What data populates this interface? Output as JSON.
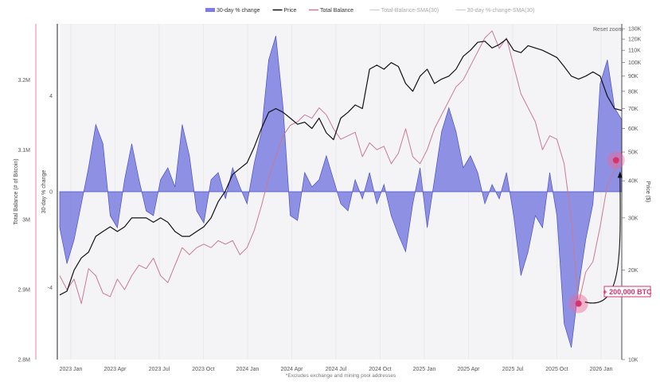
{
  "chart_data": {
    "type": "line",
    "legend": {
      "position": "top",
      "items": [
        {
          "label": "30-day % change",
          "color": "#7b7ee0",
          "style": "area"
        },
        {
          "label": "Price",
          "color": "#111111",
          "style": "line"
        },
        {
          "label": "Total Balance",
          "color": "#c97b8e",
          "style": "line"
        },
        {
          "label": "Total-Balance-SMA(30)",
          "color": "#bbbbbb",
          "style": "line-faded"
        },
        {
          "label": "30-day %-change-SMA(30)",
          "color": "#bbbbbb",
          "style": "line-faded"
        }
      ]
    },
    "reset_zoom_label": "Reset zoom",
    "footnote": "*Excludes exchange and mining pool addresses",
    "annotation": "+ 200,000 BTC",
    "x_ticks": [
      "2023 Jan",
      "2023 Apr",
      "2023 Jul",
      "2023 Oct",
      "2024 Jan",
      "2024 Apr",
      "2024 Jul",
      "2024 Oct",
      "2025 Jan",
      "2025 Apr",
      "2025 Jul",
      "2025 Oct",
      "2026 Jan"
    ],
    "x_range": [
      0,
      39
    ],
    "axes": {
      "left_balance": {
        "title": "Total Balance (# of Bitcoin)",
        "ticks": [
          "2.8M",
          "2.9M",
          "3M",
          "3.1M",
          "3.2M"
        ],
        "tick_values": [
          2.8,
          2.9,
          3.0,
          3.1,
          3.2
        ],
        "range": [
          2.8,
          3.28
        ]
      },
      "left_change": {
        "title": "30-day % change",
        "ticks": [
          "-4",
          "0",
          "4"
        ],
        "tick_values": [
          -4,
          0,
          4
        ],
        "range": [
          -7,
          7
        ]
      },
      "right_price": {
        "title": "Price ($)",
        "scale": "log",
        "ticks": [
          "10K",
          "20K",
          "30K",
          "40K",
          "50K",
          "60K",
          "70K",
          "80K",
          "90K",
          "100K",
          "110K",
          "120K",
          "130K"
        ],
        "tick_values": [
          10,
          20,
          30,
          40,
          50,
          60,
          70,
          80,
          90,
          100,
          110,
          120,
          130
        ],
        "range": [
          10,
          135
        ]
      }
    },
    "series": [
      {
        "name": "30-day % change",
        "x": [
          0,
          0.5,
          1,
          1.5,
          2,
          2.5,
          3,
          3.5,
          4,
          4.5,
          5,
          5.5,
          6,
          6.5,
          7,
          7.5,
          8,
          8.5,
          9,
          9.5,
          10,
          10.5,
          11,
          11.5,
          12,
          12.5,
          13,
          13.5,
          14,
          14.5,
          15,
          15.5,
          16,
          16.5,
          17,
          17.5,
          18,
          18.5,
          19,
          19.5,
          20,
          20.5,
          21,
          21.5,
          22,
          22.5,
          23,
          23.5,
          24,
          24.5,
          25,
          25.5,
          26,
          26.5,
          27,
          27.5,
          28,
          28.5,
          29,
          29.5,
          30,
          30.5,
          31,
          31.5,
          32,
          32.5,
          33,
          33.5,
          34,
          34.5,
          35,
          35.5,
          36,
          36.5,
          37,
          37.5,
          38,
          38.5,
          39
        ],
        "values": [
          -1.5,
          -3,
          -2,
          -0.5,
          1,
          2.8,
          2,
          -1,
          -1.5,
          0.5,
          2,
          0.5,
          -0.8,
          -1,
          0.5,
          1,
          0.2,
          2.8,
          1.5,
          -0.8,
          -1.3,
          0.5,
          0.8,
          -0.3,
          1,
          0.2,
          -0.5,
          1.2,
          2.5,
          5.5,
          6.5,
          3.5,
          -1,
          -1.2,
          0.8,
          0.2,
          0.5,
          1.5,
          0.5,
          -0.5,
          -0.8,
          0.5,
          -0.3,
          0.8,
          -0.5,
          0.3,
          -1,
          -1.8,
          -2.5,
          -0.5,
          1,
          -1.5,
          0.5,
          2.5,
          3.5,
          2.5,
          1,
          1.5,
          0.8,
          -0.5,
          0.3,
          -0.3,
          0.8,
          -1,
          -3.5,
          -2.5,
          -1,
          -1.5,
          0.8,
          -1,
          -5.5,
          -6.5,
          -4,
          -2,
          -0.5,
          4.5,
          5.5,
          3.5,
          3
        ]
      },
      {
        "name": "Price",
        "x": [
          0,
          0.5,
          1,
          1.5,
          2,
          2.5,
          3,
          3.5,
          4,
          4.5,
          5,
          5.5,
          6,
          6.5,
          7,
          7.5,
          8,
          8.5,
          9,
          9.5,
          10,
          10.5,
          11,
          11.5,
          12,
          12.5,
          13,
          13.5,
          14,
          14.5,
          15,
          15.5,
          16,
          16.5,
          17,
          17.5,
          18,
          18.5,
          19,
          19.5,
          20,
          20.5,
          21,
          21.5,
          22,
          22.5,
          23,
          23.5,
          24,
          24.5,
          25,
          25.5,
          26,
          26.5,
          27,
          27.5,
          28,
          28.5,
          29,
          29.5,
          30,
          30.5,
          31,
          31.5,
          32,
          32.5,
          33,
          33.5,
          34,
          34.5,
          35,
          35.5,
          36,
          36.5,
          37,
          37.5,
          38,
          38.5,
          39
        ],
        "values": [
          16.5,
          17,
          20,
          22,
          23,
          26,
          27,
          28,
          27,
          28,
          30,
          30,
          30,
          29,
          30,
          29,
          27,
          26,
          26,
          27,
          28,
          30,
          34,
          37,
          42,
          44,
          46,
          52,
          60,
          68,
          70,
          68,
          65,
          62,
          63,
          60,
          65,
          58,
          55,
          65,
          68,
          72,
          70,
          95,
          98,
          95,
          100,
          97,
          85,
          80,
          90,
          95,
          85,
          88,
          90,
          95,
          105,
          110,
          117,
          118,
          112,
          115,
          120,
          110,
          108,
          114,
          112,
          110,
          107,
          104,
          97,
          90,
          88,
          90,
          93,
          90,
          77,
          70,
          69
        ]
      },
      {
        "name": "Total Balance",
        "x": [
          0,
          0.5,
          1,
          1.5,
          2,
          2.5,
          3,
          3.5,
          4,
          4.5,
          5,
          5.5,
          6,
          6.5,
          7,
          7.5,
          8,
          8.5,
          9,
          9.5,
          10,
          10.5,
          11,
          11.5,
          12,
          12.5,
          13,
          13.5,
          14,
          14.5,
          15,
          15.5,
          16,
          16.5,
          17,
          17.5,
          18,
          18.5,
          19,
          19.5,
          20,
          20.5,
          21,
          21.5,
          22,
          22.5,
          23,
          23.5,
          24,
          24.5,
          25,
          25.5,
          26,
          26.5,
          27,
          27.5,
          28,
          28.5,
          29,
          29.5,
          30,
          30.5,
          31,
          31.5,
          32,
          32.5,
          33,
          33.5,
          34,
          34.5,
          35,
          35.5,
          36,
          36.5,
          37,
          37.5,
          38,
          38.5,
          39
        ],
        "values": [
          2.92,
          2.9,
          2.915,
          2.88,
          2.93,
          2.92,
          2.895,
          2.89,
          2.915,
          2.9,
          2.92,
          2.935,
          2.93,
          2.945,
          2.92,
          2.91,
          2.935,
          2.96,
          2.95,
          2.96,
          2.965,
          2.96,
          2.97,
          2.965,
          2.97,
          2.95,
          2.96,
          2.985,
          3.02,
          3.06,
          3.09,
          3.12,
          3.135,
          3.14,
          3.15,
          3.145,
          3.16,
          3.15,
          3.13,
          3.115,
          3.12,
          3.125,
          3.09,
          3.11,
          3.1,
          3.105,
          3.08,
          3.095,
          3.13,
          3.09,
          3.08,
          3.1,
          3.13,
          3.15,
          3.17,
          3.19,
          3.2,
          3.22,
          3.24,
          3.26,
          3.27,
          3.245,
          3.26,
          3.22,
          3.18,
          3.16,
          3.14,
          3.1,
          3.12,
          3.115,
          3.08,
          3.0,
          2.88,
          2.925,
          2.94,
          2.99,
          3.05,
          3.07,
          3.1
        ]
      }
    ]
  }
}
